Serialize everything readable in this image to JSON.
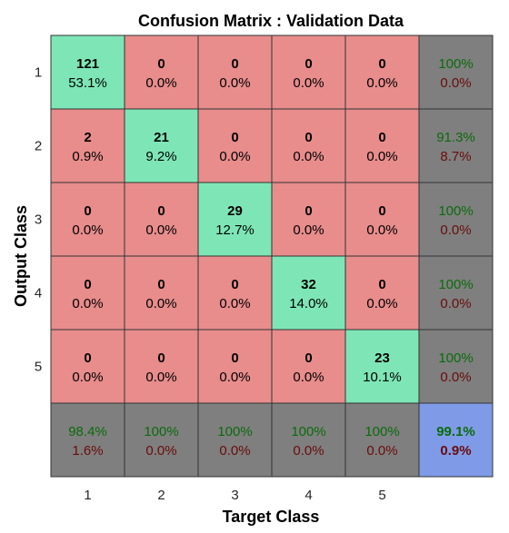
{
  "chart_data": {
    "type": "heatmap",
    "title": "Confusion Matrix : Validation Data",
    "xlabel": "Target Class",
    "ylabel": "Output Class",
    "x_ticks": [
      "1",
      "2",
      "3",
      "4",
      "5"
    ],
    "y_ticks": [
      "1",
      "2",
      "3",
      "4",
      "5"
    ],
    "counts": [
      [
        121,
        0,
        0,
        0,
        0
      ],
      [
        2,
        21,
        0,
        0,
        0
      ],
      [
        0,
        0,
        29,
        0,
        0
      ],
      [
        0,
        0,
        0,
        32,
        0
      ],
      [
        0,
        0,
        0,
        0,
        23
      ]
    ],
    "percents": [
      [
        "53.1%",
        "0.0%",
        "0.0%",
        "0.0%",
        "0.0%"
      ],
      [
        "0.9%",
        "9.2%",
        "0.0%",
        "0.0%",
        "0.0%"
      ],
      [
        "0.0%",
        "0.0%",
        "12.7%",
        "0.0%",
        "0.0%"
      ],
      [
        "0.0%",
        "0.0%",
        "0.0%",
        "14.0%",
        "0.0%"
      ],
      [
        "0.0%",
        "0.0%",
        "0.0%",
        "0.0%",
        "10.1%"
      ]
    ],
    "row_summary": [
      {
        "correct": "100%",
        "error": "0.0%"
      },
      {
        "correct": "91.3%",
        "error": "8.7%"
      },
      {
        "correct": "100%",
        "error": "0.0%"
      },
      {
        "correct": "100%",
        "error": "0.0%"
      },
      {
        "correct": "100%",
        "error": "0.0%"
      }
    ],
    "col_summary": [
      {
        "correct": "98.4%",
        "error": "1.6%"
      },
      {
        "correct": "100%",
        "error": "0.0%"
      },
      {
        "correct": "100%",
        "error": "0.0%"
      },
      {
        "correct": "100%",
        "error": "0.0%"
      },
      {
        "correct": "100%",
        "error": "0.0%"
      }
    ],
    "overall": {
      "correct": "99.1%",
      "error": "0.9%"
    },
    "colors": {
      "diagonal": "#7ee6b6",
      "off_diagonal": "#e88c8c",
      "summary": "#7f7f7f",
      "overall": "#7f9be8",
      "grid": "#333333"
    }
  }
}
